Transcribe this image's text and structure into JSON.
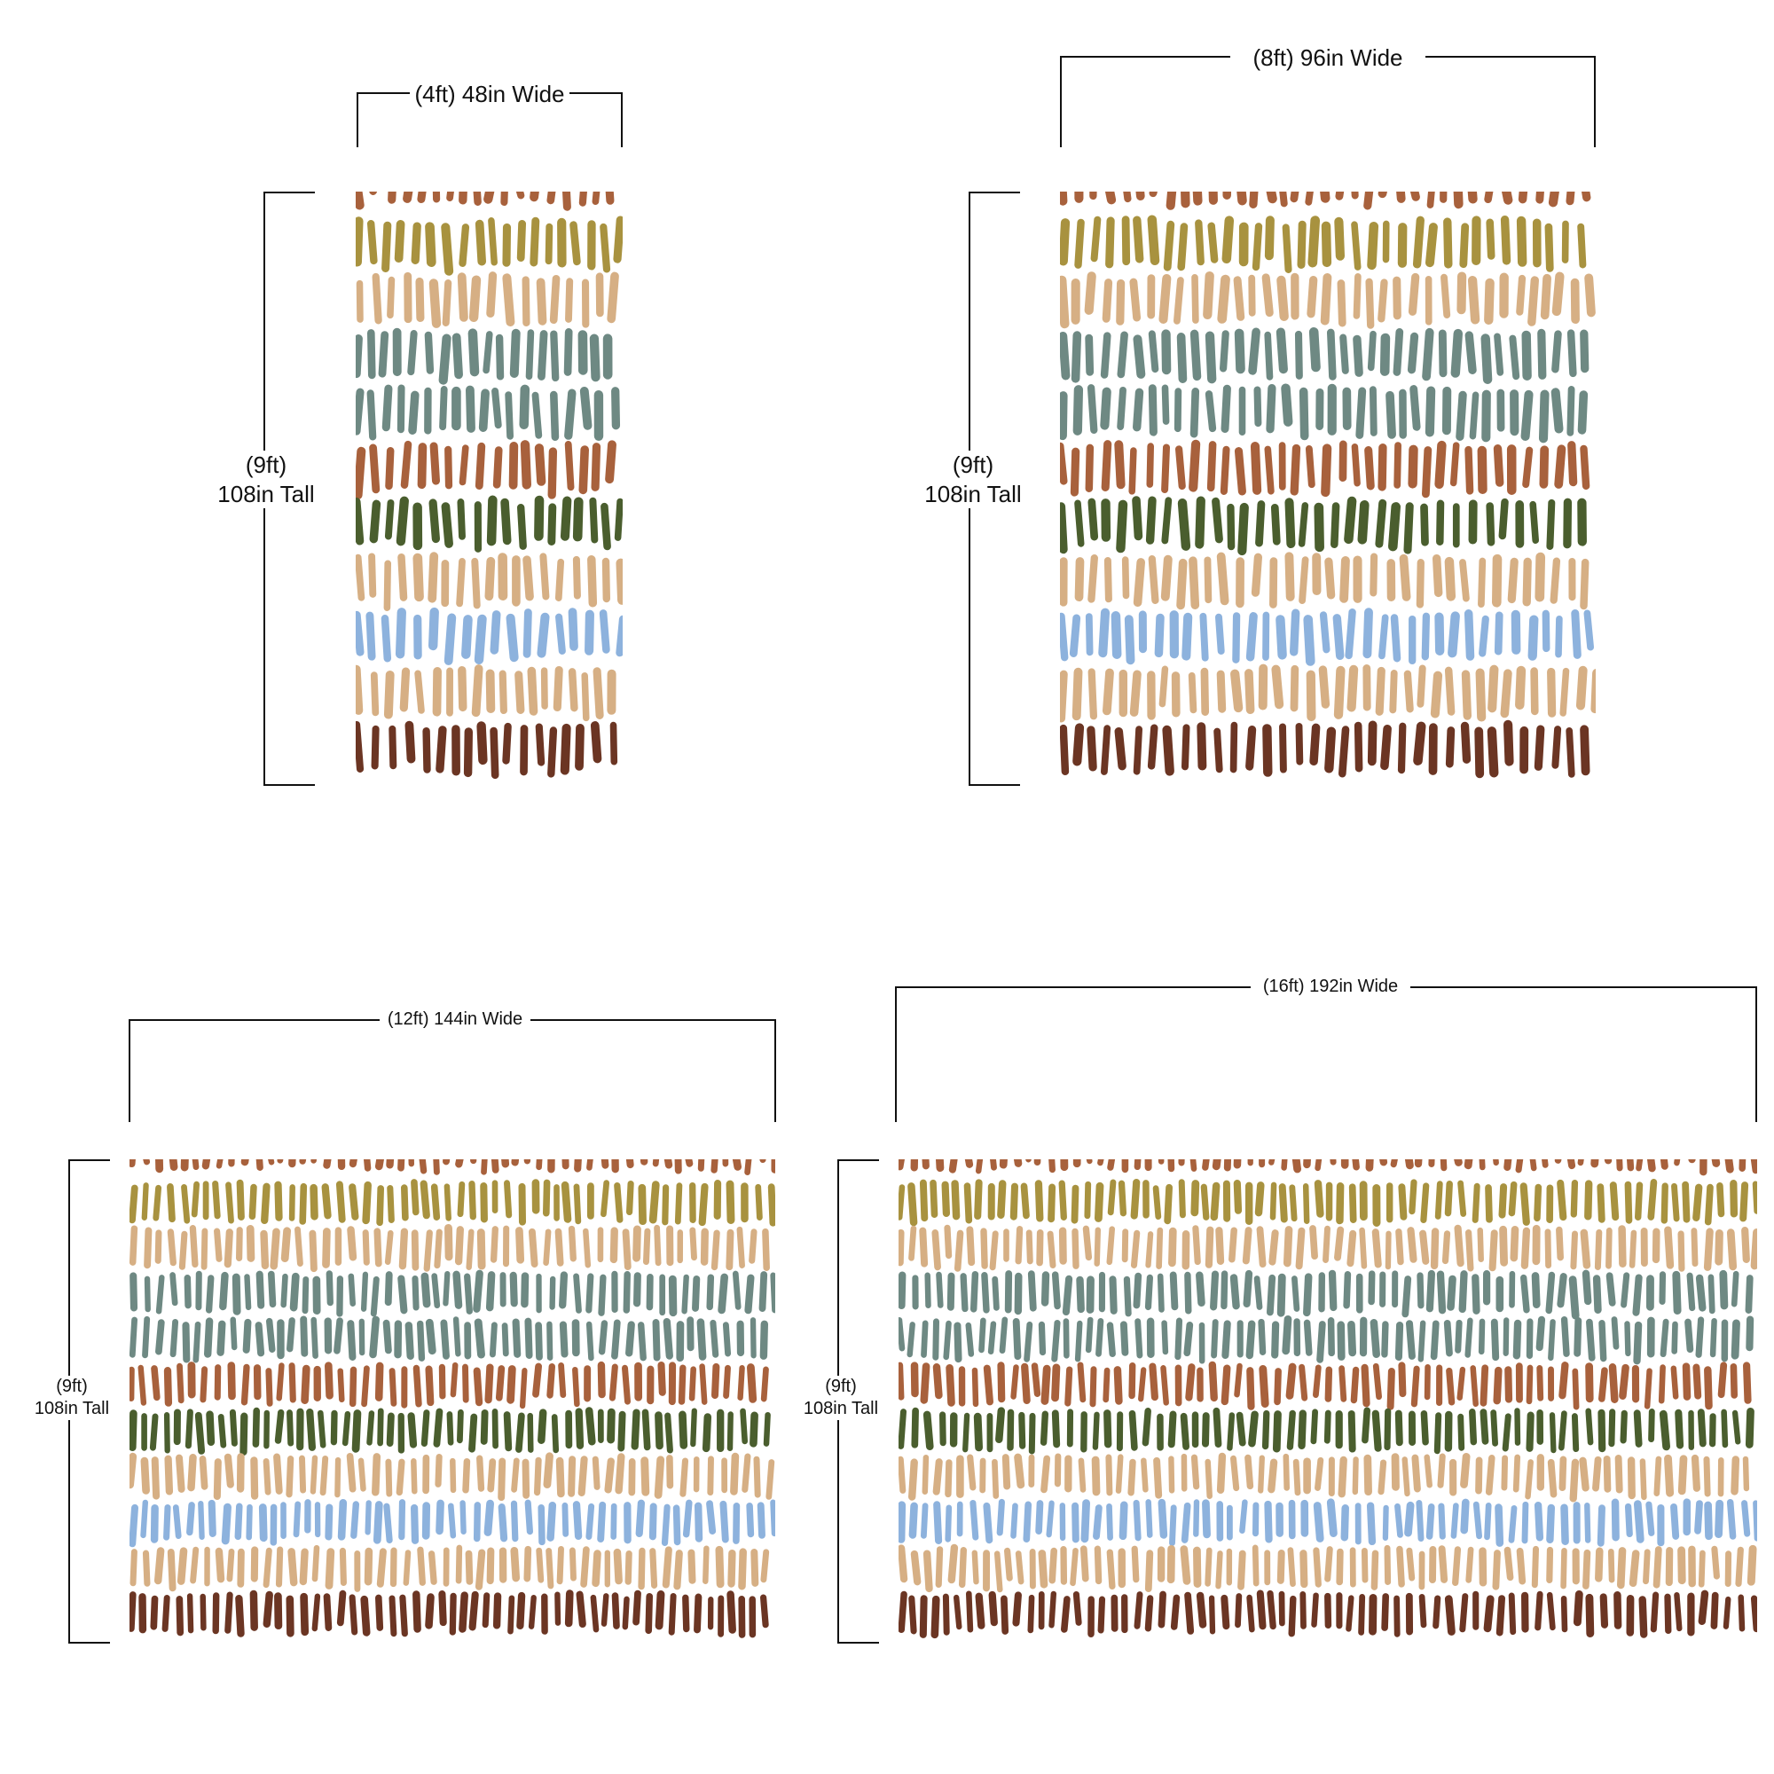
{
  "tall_label": {
    "feet": "(9ft)",
    "inches": "108in Tall"
  },
  "panels": [
    {
      "id": "48",
      "width_label": "(4ft) 48in Wide"
    },
    {
      "id": "96",
      "width_label": "(8ft) 96in Wide"
    },
    {
      "id": "144",
      "width_label": "(12ft) 144in Wide"
    },
    {
      "id": "192",
      "width_label": "(16ft) 192in Wide"
    }
  ],
  "pattern": {
    "background": "#ffffff",
    "stripe_colors": [
      "#A8613C",
      "#A8923F",
      "#D6AF84",
      "#6E8983",
      "#6E8983",
      "#A8613C",
      "#4A5E2E",
      "#D6AF84",
      "#8DB2DD",
      "#D6AF84",
      "#6B3523"
    ]
  }
}
